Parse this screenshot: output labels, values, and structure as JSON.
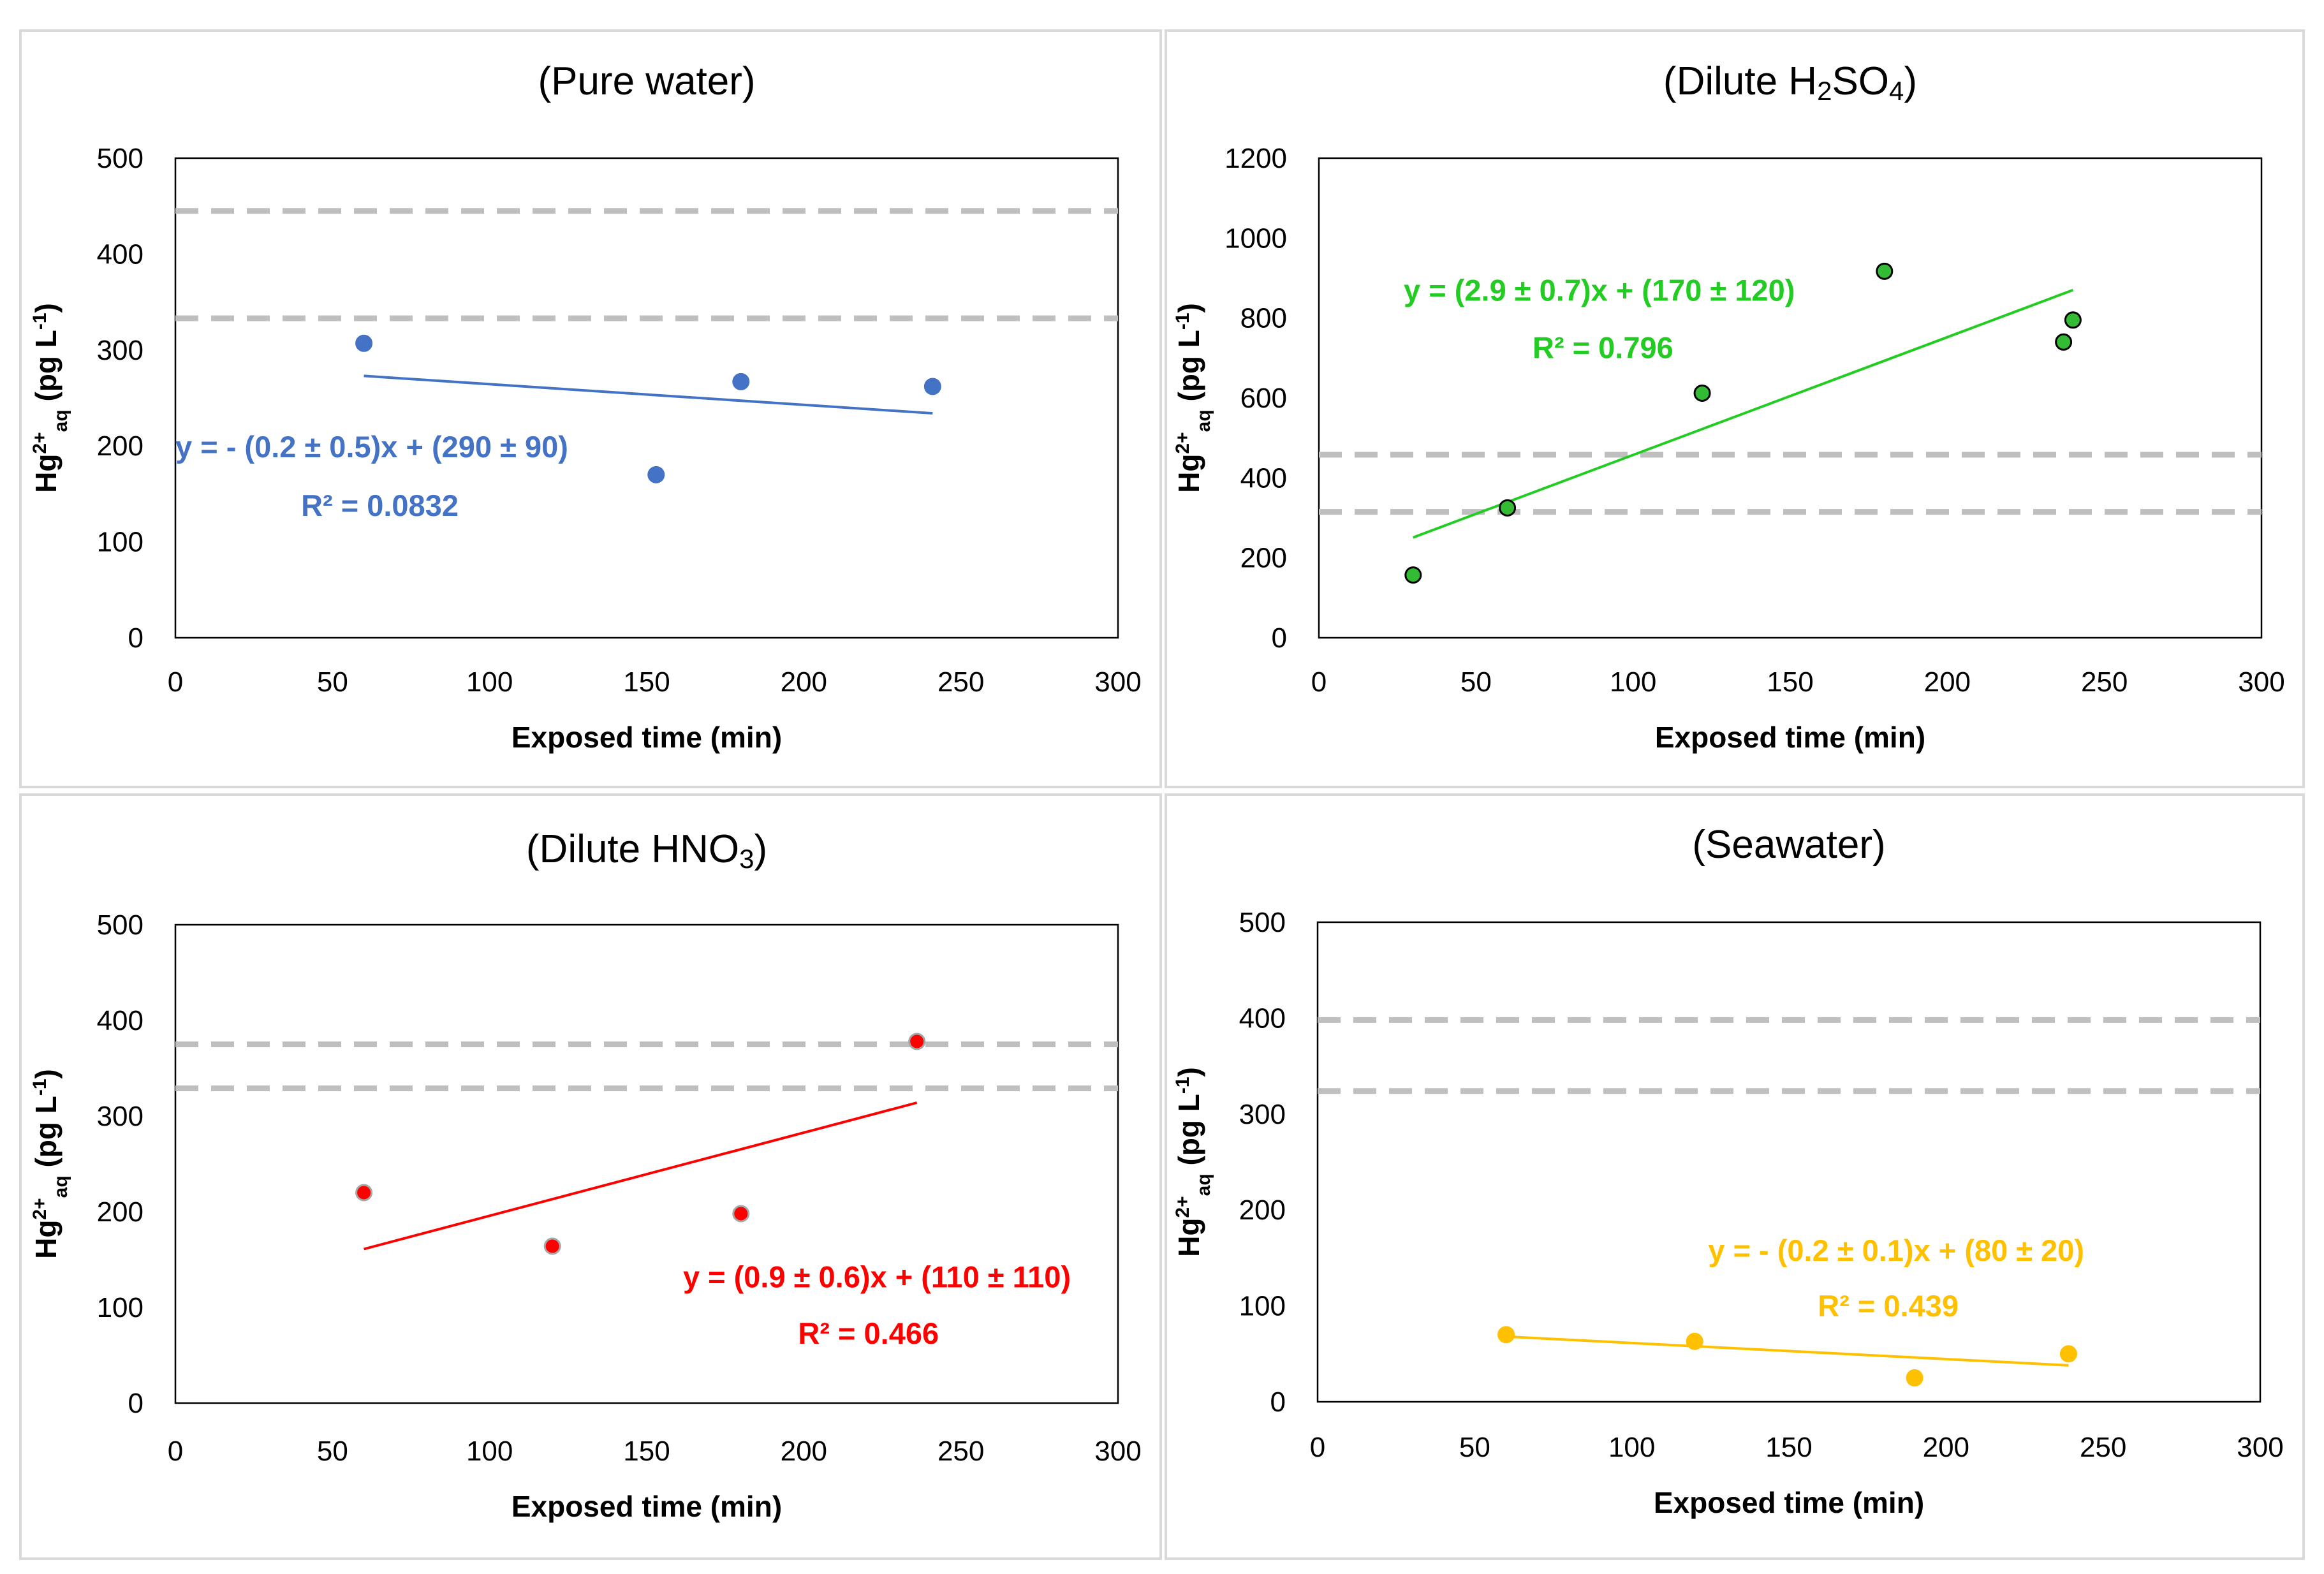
{
  "chart_data": [
    {
      "type": "scatter",
      "title": "(Pure water)",
      "title_parts": [
        {
          "t": "(Pure water)"
        }
      ],
      "xlabel": "Exposed time (min)",
      "ylabel": "Hg2+aq (pg L-1)",
      "xlim": [
        0,
        300
      ],
      "ylim": [
        0,
        500
      ],
      "xticks": [
        0,
        50,
        100,
        150,
        200,
        250,
        300
      ],
      "yticks": [
        0,
        100,
        200,
        300,
        400,
        500
      ],
      "grid": false,
      "color": "#4472c4",
      "marker_fill": "#4472c4",
      "marker_stroke": "#4472c4",
      "points": [
        {
          "x": 60,
          "y": 307
        },
        {
          "x": 153,
          "y": 170
        },
        {
          "x": 180,
          "y": 267
        },
        {
          "x": 241,
          "y": 262
        }
      ],
      "reference_lines": [
        445,
        333
      ],
      "trendline": {
        "x0": 60,
        "y0": 273,
        "x1": 241,
        "y1": 234
      },
      "equation": "y = - (0.2 ± 0.5)x + (290 ± 90)",
      "r2": "R² = 0.0832",
      "eq_pos": {
        "x": 0,
        "y": 188,
        "anchor": "start"
      },
      "r2_pos": {
        "x": 40,
        "y": 127,
        "anchor": "start"
      }
    },
    {
      "type": "scatter",
      "title": "(Dilute H2SO4)",
      "title_parts": [
        {
          "t": "(Dilute H"
        },
        {
          "t": "2",
          "sub": true
        },
        {
          "t": "SO"
        },
        {
          "t": "4",
          "sub": true
        },
        {
          "t": ")"
        }
      ],
      "xlabel": "Exposed time (min)",
      "ylabel": "Hg2+aq (pg L-1)",
      "xlim": [
        0,
        300
      ],
      "ylim": [
        0,
        1200
      ],
      "xticks": [
        0,
        50,
        100,
        150,
        200,
        250,
        300
      ],
      "yticks": [
        0,
        200,
        400,
        600,
        800,
        1000,
        1200
      ],
      "grid": false,
      "color": "#22cc22",
      "marker_fill": "#33bb33",
      "marker_stroke": "#000000",
      "points": [
        {
          "x": 30,
          "y": 157
        },
        {
          "x": 60,
          "y": 325
        },
        {
          "x": 122,
          "y": 612
        },
        {
          "x": 180,
          "y": 917
        },
        {
          "x": 237,
          "y": 740
        },
        {
          "x": 240,
          "y": 795
        }
      ],
      "reference_lines": [
        458,
        315
      ],
      "trendline": {
        "x0": 30,
        "y0": 251,
        "x1": 240,
        "y1": 870
      },
      "equation": "y = (2.9 ± 0.7)x + (170 ± 120)",
      "r2": "R² = 0.796",
      "eq_pos": {
        "x": 27,
        "y": 843,
        "anchor": "start"
      },
      "r2_pos": {
        "x": 68,
        "y": 700,
        "anchor": "start"
      }
    },
    {
      "type": "scatter",
      "title": "(Dilute HNO3)",
      "title_parts": [
        {
          "t": "(Dilute HNO"
        },
        {
          "t": "3",
          "sub": true
        },
        {
          "t": ")"
        }
      ],
      "xlabel": "Exposed time (min)",
      "ylabel": "Hg2+aq (pg L-1)",
      "xlim": [
        0,
        300
      ],
      "ylim": [
        0,
        500
      ],
      "xticks": [
        0,
        50,
        100,
        150,
        200,
        250,
        300
      ],
      "yticks": [
        0,
        100,
        200,
        300,
        400,
        500
      ],
      "grid": false,
      "color": "#ff0000",
      "marker_fill": "#ff0000",
      "marker_stroke": "#a6a6a6",
      "points": [
        {
          "x": 60,
          "y": 220
        },
        {
          "x": 120,
          "y": 164
        },
        {
          "x": 180,
          "y": 198
        },
        {
          "x": 236,
          "y": 378
        }
      ],
      "reference_lines": [
        375,
        329
      ],
      "trendline": {
        "x0": 60,
        "y0": 161,
        "x1": 236,
        "y1": 314
      },
      "equation": "y = (0.9 ± 0.6)x + (110 ± 110)",
      "r2": "R² = 0.466",
      "eq_pos": {
        "x": 285,
        "y": 121,
        "anchor": "end"
      },
      "r2_pos": {
        "x": 243,
        "y": 62,
        "anchor": "end"
      }
    },
    {
      "type": "scatter",
      "title": "(Seawater)",
      "title_parts": [
        {
          "t": "(Seawater)"
        }
      ],
      "xlabel": "Exposed time (min)",
      "ylabel": "Hg2+aq (pg L-1)",
      "xlim": [
        0,
        300
      ],
      "ylim": [
        0,
        500
      ],
      "xticks": [
        0,
        50,
        100,
        150,
        200,
        250,
        300
      ],
      "yticks": [
        0,
        100,
        200,
        300,
        400,
        500
      ],
      "grid": false,
      "color": "#ffc000",
      "marker_fill": "#ffc000",
      "marker_stroke": "#ffc000",
      "points": [
        {
          "x": 60,
          "y": 70
        },
        {
          "x": 120,
          "y": 63
        },
        {
          "x": 190,
          "y": 25
        },
        {
          "x": 239,
          "y": 50
        }
      ],
      "reference_lines": [
        398,
        324
      ],
      "trendline": {
        "x0": 60,
        "y0": 68,
        "x1": 239,
        "y1": 38
      },
      "equation": "y = - (0.2 ± 0.1)x + (80 ± 20)",
      "r2": "R² = 0.439",
      "eq_pos": {
        "x": 244,
        "y": 147,
        "anchor": "end"
      },
      "r2_pos": {
        "x": 204,
        "y": 89,
        "anchor": "end"
      }
    }
  ]
}
